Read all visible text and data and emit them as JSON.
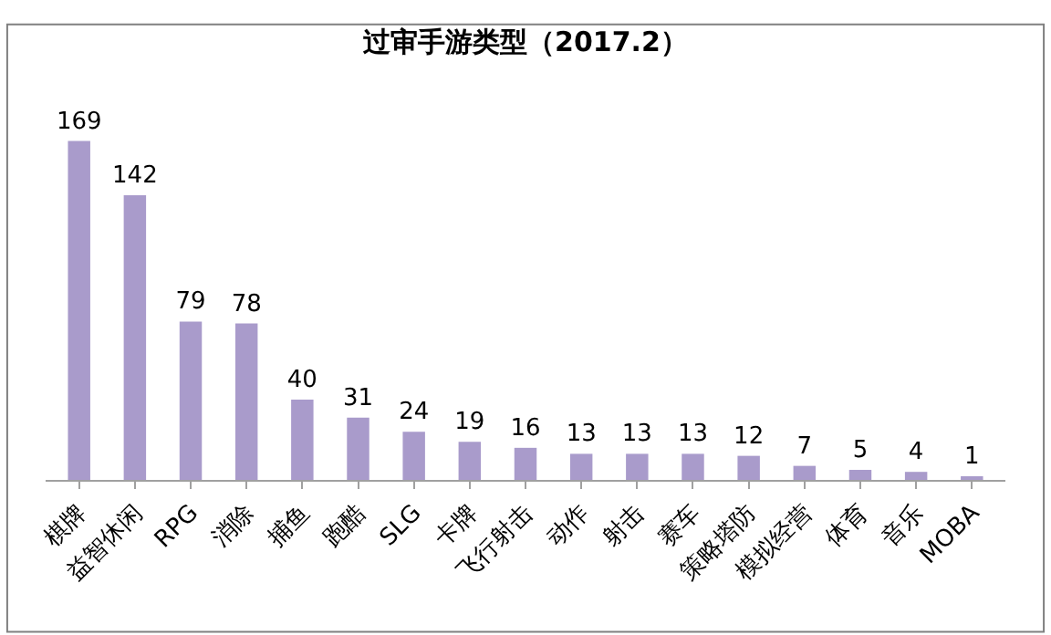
{
  "chart_data": {
    "type": "bar",
    "title": "过审手游类型（2017.2）",
    "categories": [
      "棋牌",
      "益智休闲",
      "RPG",
      "消除",
      "捕鱼",
      "跑酷",
      "SLG",
      "卡牌",
      "飞行射击",
      "动作",
      "射击",
      "赛车",
      "策略塔防",
      "模拟经营",
      "体育",
      "音乐",
      "MOBA"
    ],
    "values": [
      169,
      142,
      79,
      78,
      40,
      31,
      24,
      19,
      16,
      13,
      13,
      13,
      12,
      7,
      5,
      4,
      1
    ],
    "color": "#a99bcb",
    "data_labels": true
  }
}
